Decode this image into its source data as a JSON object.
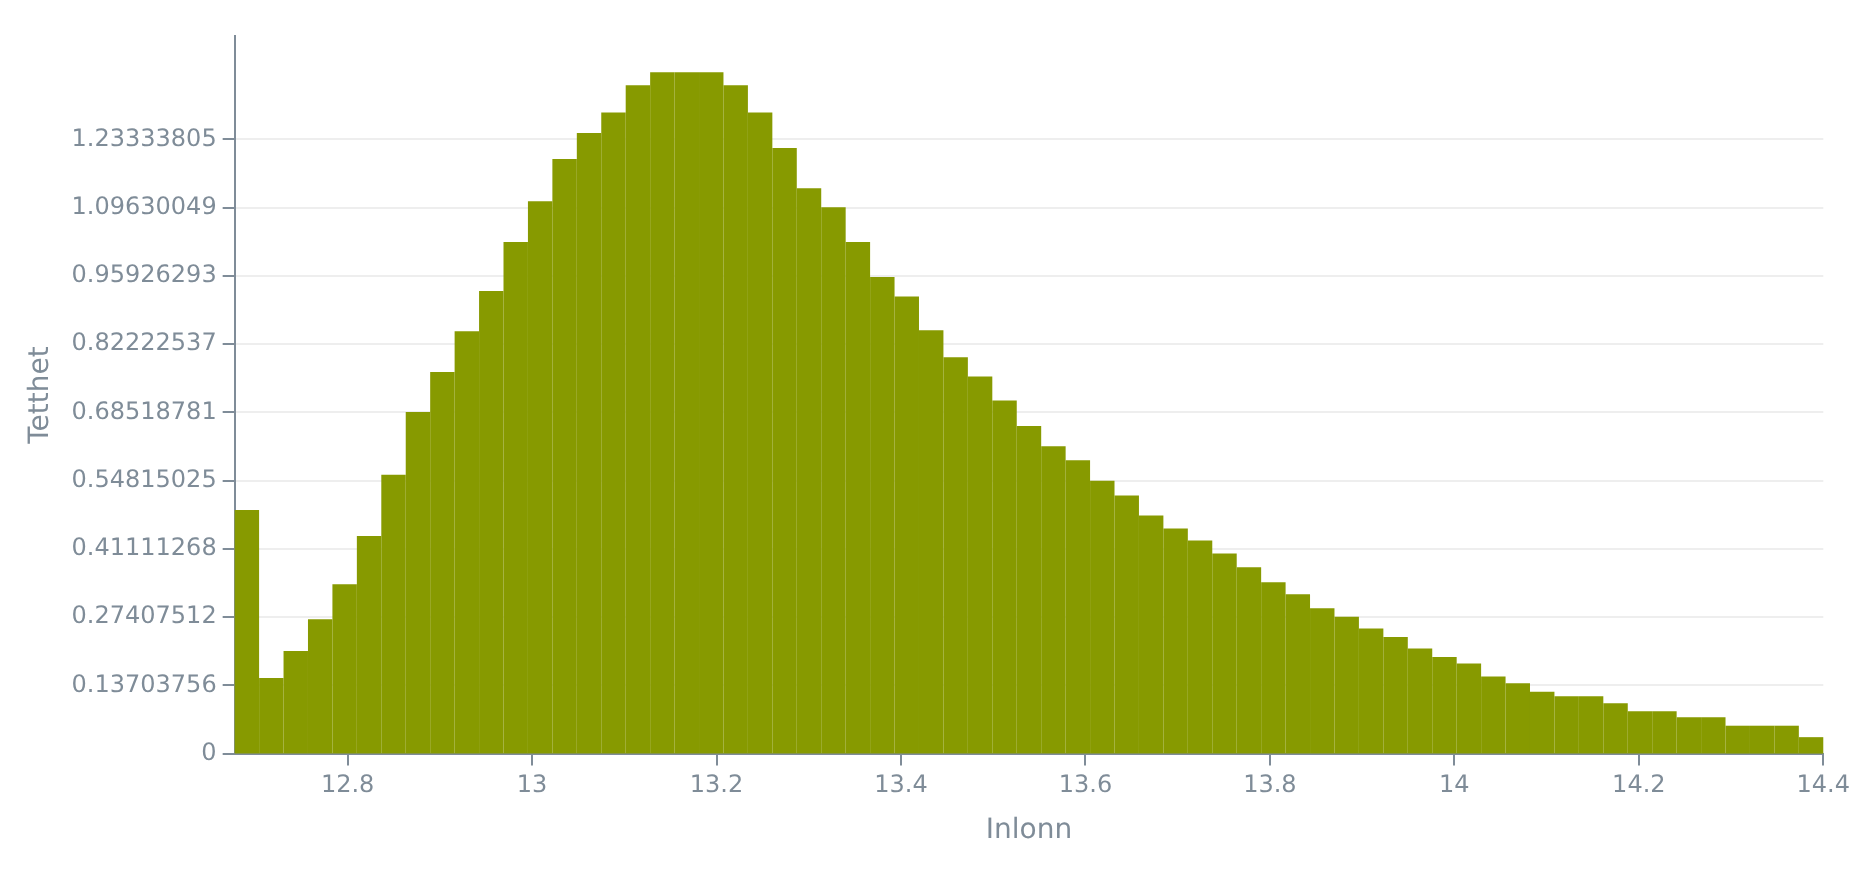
{
  "chart_data": {
    "type": "histogram",
    "xlabel": "Inlonn",
    "ylabel": "Tetthet",
    "color": "#879a00",
    "bins": [
      12.6775,
      12.704,
      12.7305,
      12.757,
      12.7835,
      12.81,
      12.8365,
      12.863,
      12.8895,
      12.916,
      12.9425,
      12.969,
      12.9955,
      13.022,
      13.0485,
      13.075,
      13.1015,
      13.128,
      13.1545,
      13.181,
      13.2075,
      13.234,
      13.2605,
      13.287,
      13.3135,
      13.34,
      13.3665,
      13.393,
      13.4195,
      13.446,
      13.4725,
      13.499,
      13.5255,
      13.552,
      13.5785,
      13.605,
      13.6315,
      13.658,
      13.6845,
      13.711,
      13.7375,
      13.764,
      13.7905,
      13.817,
      13.8435,
      13.87,
      13.8965,
      13.923,
      13.9495,
      13.976,
      14.0025,
      14.029,
      14.0555,
      14.082,
      14.1085,
      14.135,
      14.1615,
      14.188,
      14.2145,
      14.241,
      14.2675,
      14.294,
      14.3205,
      14.347,
      14.3735,
      14.4
    ],
    "values": [
      0.489,
      0.152,
      0.206,
      0.27,
      0.34,
      0.437,
      0.56,
      0.686,
      0.766,
      0.848,
      0.929,
      1.027,
      1.109,
      1.194,
      1.246,
      1.287,
      1.342,
      1.368,
      1.368,
      1.368,
      1.342,
      1.287,
      1.216,
      1.135,
      1.097,
      1.027,
      0.957,
      0.918,
      0.85,
      0.796,
      0.757,
      0.709,
      0.658,
      0.617,
      0.589,
      0.548,
      0.518,
      0.478,
      0.452,
      0.428,
      0.402,
      0.374,
      0.344,
      0.32,
      0.292,
      0.275,
      0.251,
      0.234,
      0.211,
      0.194,
      0.181,
      0.155,
      0.141,
      0.124,
      0.115,
      0.115,
      0.101,
      0.085,
      0.085,
      0.073,
      0.073,
      0.056,
      0.056,
      0.056,
      0.033
    ],
    "xlim": [
      12.6775,
      14.4
    ],
    "xticks": [
      12.8,
      13,
      13.2,
      13.4,
      13.6,
      13.8,
      14,
      14.2,
      14.4
    ],
    "ylim": [
      0,
      1.44
    ],
    "yticks": [
      0,
      0.13703756,
      0.27407512,
      0.41111268,
      0.54815025,
      0.68518781,
      0.82222537,
      0.95926293,
      1.09630049,
      1.23333805
    ],
    "grid": "y"
  }
}
